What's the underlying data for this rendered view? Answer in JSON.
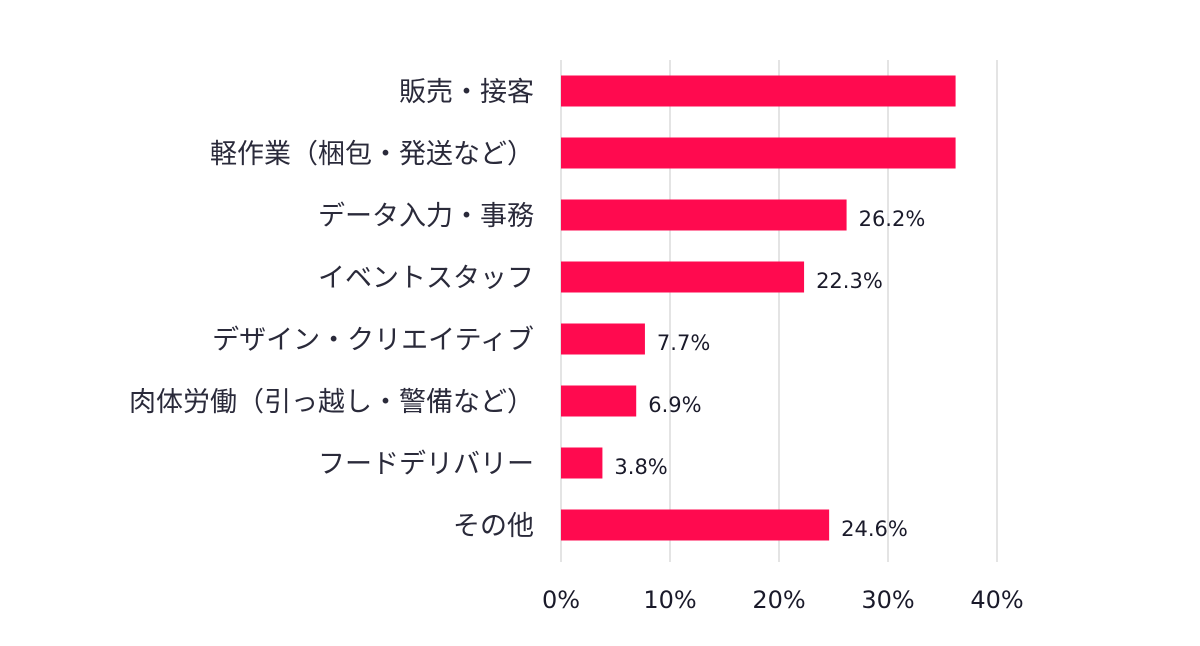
{
  "chart_data": {
    "type": "bar",
    "orientation": "horizontal",
    "categories": [
      "販売・接客",
      "軽作業（梱包・発送など）",
      "データ入力・事務",
      "イベントスタッフ",
      "デザイン・クリエイティブ",
      "肉体労働（引っ越し・警備など）",
      "フードデリバリー",
      "その他"
    ],
    "values": [
      36.2,
      36.2,
      26.2,
      22.3,
      7.7,
      6.9,
      3.8,
      24.6
    ],
    "data_labels": [
      "",
      "",
      "26.2%",
      "22.3%",
      "7.7%",
      "6.9%",
      "3.8%",
      "24.6%"
    ],
    "xticks": [
      "0%",
      "10%",
      "20%",
      "30%",
      "40%"
    ],
    "xlim": [
      0,
      40
    ],
    "grid": true,
    "colors": {
      "bar": "#ff0a4f"
    }
  }
}
